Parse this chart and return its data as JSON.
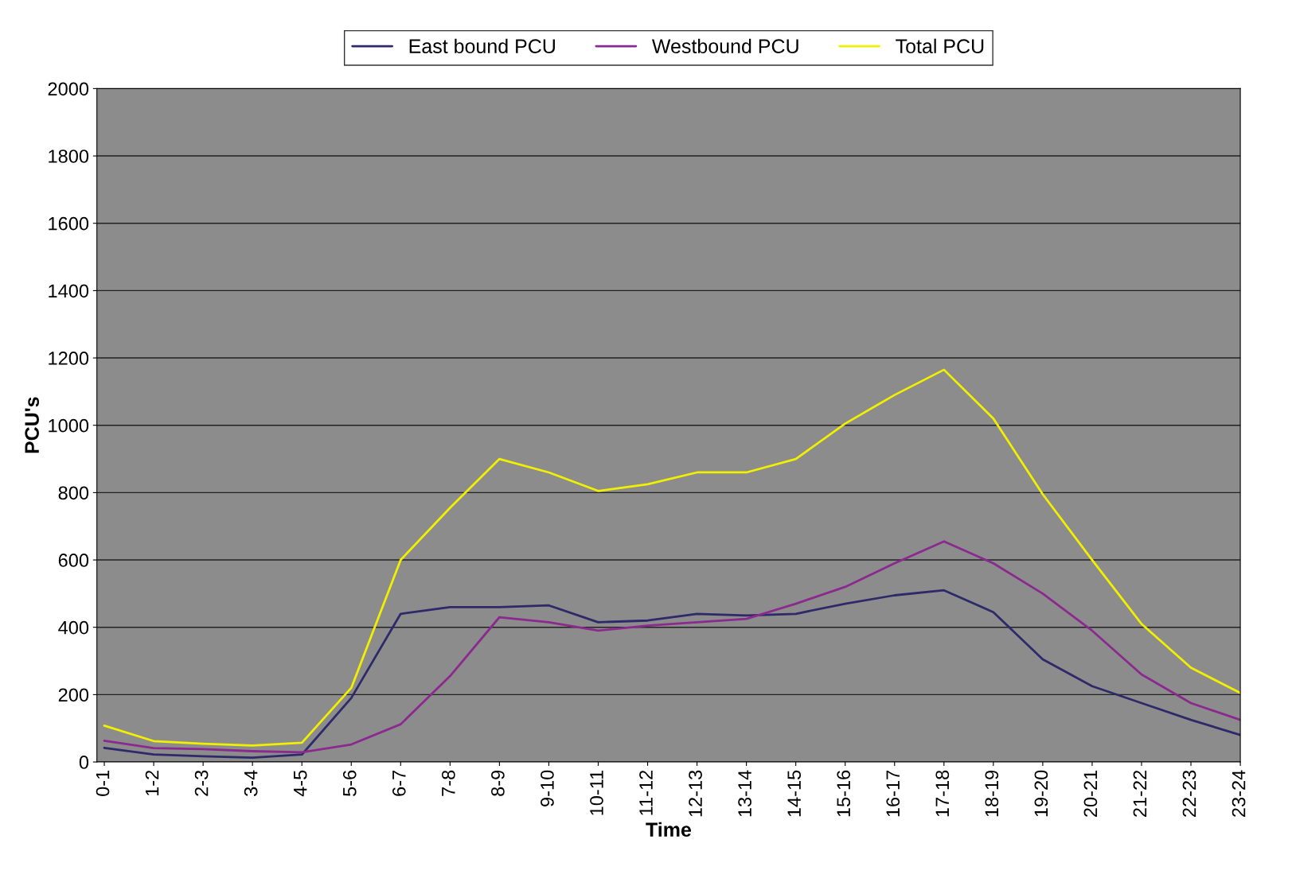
{
  "chart_data": {
    "type": "line",
    "xlabel": "Time",
    "ylabel": "PCU's",
    "categories": [
      "0-1",
      "1-2",
      "2-3",
      "3-4",
      "4-5",
      "5-6",
      "6-7",
      "7-8",
      "8-9",
      "9-10",
      "10-11",
      "11-12",
      "12-13",
      "13-14",
      "14-15",
      "15-16",
      "16-17",
      "17-18",
      "18-19",
      "19-20",
      "20-21",
      "21-22",
      "22-23",
      "23-24"
    ],
    "series": [
      {
        "name": "East bound PCU",
        "color": "#2e2a6a",
        "values": [
          42,
          22,
          17,
          13,
          22,
          190,
          440,
          460,
          460,
          465,
          415,
          420,
          440,
          435,
          440,
          470,
          495,
          510,
          445,
          305,
          225,
          175,
          125,
          80
        ]
      },
      {
        "name": "Westbound PCU",
        "color": "#8b2a8e",
        "values": [
          63,
          41,
          38,
          32,
          29,
          52,
          112,
          255,
          430,
          415,
          390,
          405,
          415,
          425,
          470,
          520,
          590,
          655,
          590,
          500,
          390,
          260,
          175,
          125
        ]
      },
      {
        "name": "Total PCU",
        "color": "#f0f000",
        "values": [
          108,
          62,
          54,
          49,
          57,
          220,
          600,
          755,
          900,
          860,
          805,
          825,
          860,
          860,
          900,
          1005,
          1090,
          1165,
          1020,
          795,
          600,
          410,
          280,
          205
        ]
      }
    ],
    "ylim": [
      0,
      2000
    ],
    "yticks": [
      0,
      200,
      400,
      600,
      800,
      1000,
      1200,
      1400,
      1600,
      1800,
      2000
    ],
    "grid": "y",
    "legend": "top",
    "marker": "none",
    "line_style": "solid"
  }
}
